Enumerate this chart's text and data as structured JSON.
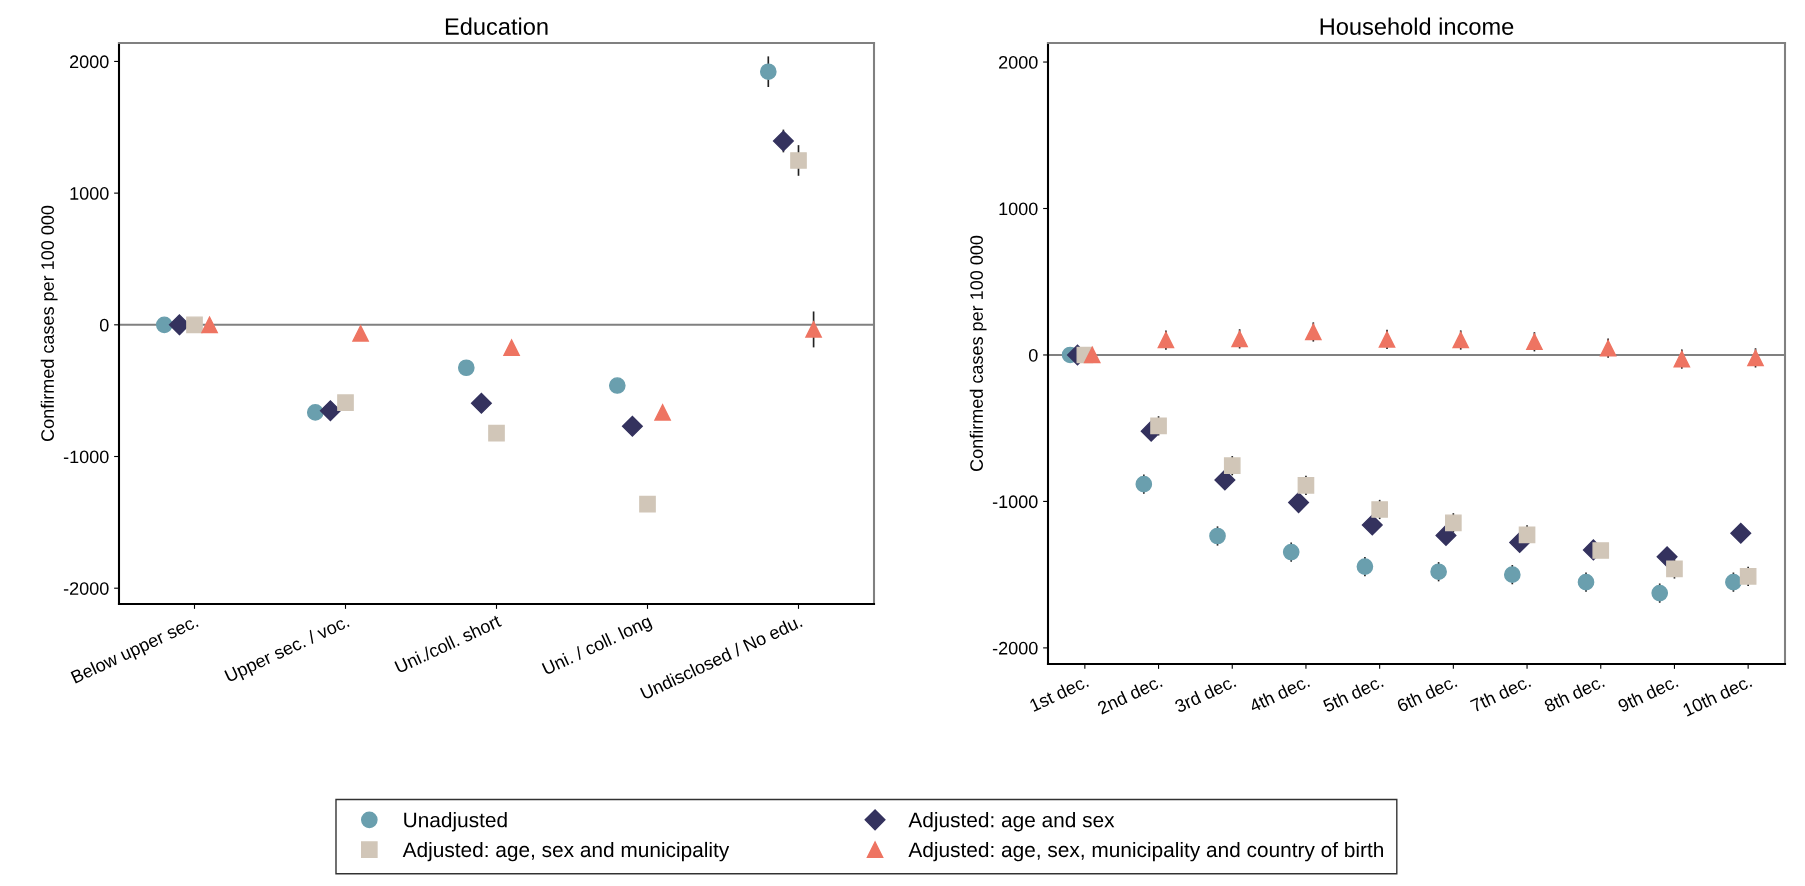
{
  "chart_data": [
    {
      "type": "scatter",
      "title": "Education",
      "ylabel": "Confirmed cases per 100 000",
      "categories": [
        "Below upper sec.",
        "Upper sec. / voc.",
        "Uni./coll. short",
        "Uni. / coll. long",
        "Undisclosed / No edu."
      ],
      "ylim": [
        -2120,
        2140
      ],
      "yticks": [
        -2000,
        -1000,
        0,
        1000,
        2000
      ],
      "grid": false,
      "legend": "bottom",
      "ref_lines": [
        {
          "axis": "y",
          "value": 0,
          "color": "#808080"
        }
      ],
      "series": [
        {
          "name": "Unadjusted",
          "color": "#6a9fae",
          "marker": "circle",
          "values": [
            0,
            -665,
            -326,
            -461,
            1922
          ],
          "errors": [
            null,
            null,
            null,
            null,
            110
          ]
        },
        {
          "name": "Adjusted: age and sex",
          "color": "#34325e",
          "marker": "diamond",
          "values": [
            0,
            -652,
            -596,
            -770,
            1396
          ],
          "errors": [
            null,
            null,
            null,
            null,
            80
          ]
        },
        {
          "name": "Adjusted: age, sex and municipality",
          "color": "#d1c6b8",
          "marker": "square",
          "values": [
            0,
            -591,
            -822,
            -1361,
            1248
          ],
          "errors": [
            null,
            null,
            null,
            null,
            110
          ]
        },
        {
          "name": "Adjusted: age, sex, municipality and country of birth",
          "color": "#ee7462",
          "marker": "triangle",
          "values": [
            0,
            -65,
            -174,
            -665,
            -35
          ],
          "errors": [
            null,
            null,
            null,
            null,
            130
          ]
        }
      ]
    },
    {
      "type": "scatter",
      "title": "Household income",
      "ylabel": "Confirmed cases per 100 000",
      "categories": [
        "1st dec.",
        "2nd dec.",
        "3rd dec.",
        "4th dec.",
        "5th dec.",
        "6th dec.",
        "7th dec.",
        "8th dec.",
        "9th dec.",
        "10th dec."
      ],
      "ylim": [
        -2110,
        2130
      ],
      "yticks": [
        -2000,
        -1000,
        0,
        1000,
        2000
      ],
      "grid": false,
      "ref_lines": [
        {
          "axis": "y",
          "value": 0,
          "color": "#808080"
        }
      ],
      "series": [
        {
          "color": "#6a9fae",
          "marker": "circle",
          "values": [
            0,
            -882,
            -1236,
            -1346,
            -1445,
            -1480,
            -1500,
            -1551,
            -1626,
            -1551
          ],
          "errors": [
            null,
            60,
            60,
            60,
            60,
            60,
            60,
            60,
            60,
            60
          ]
        },
        {
          "color": "#34325e",
          "marker": "diamond",
          "values": [
            0,
            -520,
            -854,
            -1008,
            -1161,
            -1232,
            -1280,
            -1331,
            -1378,
            -1217
          ]
        },
        {
          "color": "#d1c6b8",
          "marker": "square",
          "values": [
            0,
            -484,
            -756,
            -890,
            -1055,
            -1146,
            -1228,
            -1335,
            -1461,
            -1512
          ],
          "errors": [
            null,
            60,
            60,
            60,
            60,
            60,
            60,
            null,
            60,
            60
          ]
        },
        {
          "color": "#ee7462",
          "marker": "triangle",
          "values": [
            0,
            102,
            110,
            157,
            106,
            102,
            90,
            47,
            -28,
            -20
          ],
          "errors": [
            null,
            60,
            60,
            60,
            60,
            60,
            60,
            60,
            60,
            60
          ]
        }
      ]
    }
  ]
}
